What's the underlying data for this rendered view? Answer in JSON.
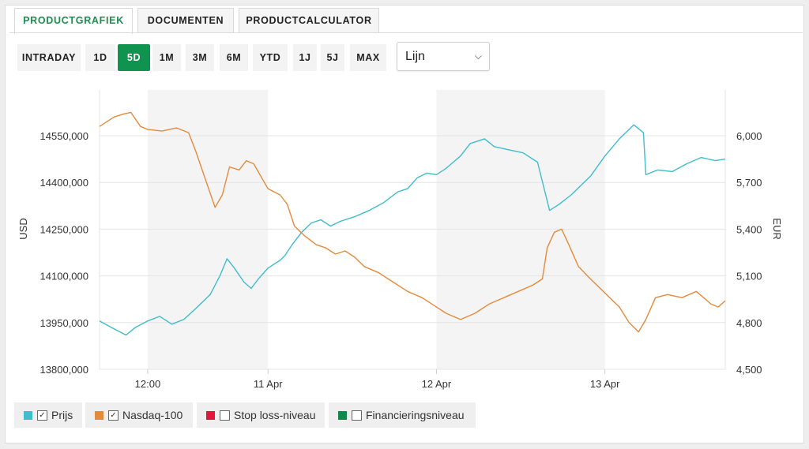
{
  "tabs": [
    "PRODUCTGRAFIEK",
    "DOCUMENTEN",
    "PRODUCTCALCULATOR"
  ],
  "ranges": [
    "INTRADAY",
    "1D",
    "5D",
    "1M",
    "3M",
    "6M",
    "YTD",
    "1J",
    "5J",
    "MAX"
  ],
  "selected_range": "5D",
  "chart_type_select": {
    "value": "Lijn"
  },
  "colors": {
    "accent": "#10934f",
    "prijs": "#40bccb",
    "nasdaq": "#e48a3b",
    "stoploss": "#e0173b",
    "financiering": "#0f8a4c",
    "shade": "#f4f4f4"
  },
  "legend": [
    {
      "label": "Prijs",
      "checked": true
    },
    {
      "label": "Nasdaq-100",
      "checked": true
    },
    {
      "label": "Stop loss-niveau",
      "checked": false
    },
    {
      "label": "Financieringsniveau",
      "checked": false
    }
  ],
  "chart_data": {
    "type": "line",
    "x_ticks": [
      "12:00",
      "11 Apr",
      "12 Apr",
      "13 Apr"
    ],
    "left_axis": {
      "label": "USD",
      "ticks": [
        "13800,000",
        "13950,000",
        "14100,000",
        "14250,000",
        "14400,000",
        "14550,000"
      ],
      "range": [
        13800,
        14550
      ]
    },
    "right_axis": {
      "label": "EUR",
      "ticks": [
        "4,500",
        "4,800",
        "5,100",
        "5,400",
        "5,700",
        "6,000"
      ],
      "range": [
        4500,
        6000
      ]
    },
    "shaded_periods": [
      [
        1.0,
        3.5
      ],
      [
        7.0,
        10.5
      ]
    ],
    "series": [
      {
        "name": "Prijs",
        "axis": "right",
        "points": [
          [
            0.0,
            4810
          ],
          [
            0.3,
            4760
          ],
          [
            0.55,
            4720
          ],
          [
            0.75,
            4770
          ],
          [
            1.0,
            4810
          ],
          [
            1.25,
            4840
          ],
          [
            1.5,
            4790
          ],
          [
            1.75,
            4820
          ],
          [
            2.0,
            4890
          ],
          [
            2.3,
            4980
          ],
          [
            2.5,
            5100
          ],
          [
            2.65,
            5210
          ],
          [
            2.8,
            5150
          ],
          [
            3.0,
            5060
          ],
          [
            3.15,
            5020
          ],
          [
            3.3,
            5080
          ],
          [
            3.5,
            5150
          ],
          [
            3.75,
            5200
          ],
          [
            3.85,
            5230
          ],
          [
            4.0,
            5300
          ],
          [
            4.2,
            5380
          ],
          [
            4.4,
            5440
          ],
          [
            4.6,
            5460
          ],
          [
            4.8,
            5420
          ],
          [
            5.0,
            5450
          ],
          [
            5.3,
            5480
          ],
          [
            5.6,
            5520
          ],
          [
            5.9,
            5570
          ],
          [
            6.2,
            5640
          ],
          [
            6.4,
            5660
          ],
          [
            6.6,
            5730
          ],
          [
            6.8,
            5760
          ],
          [
            7.0,
            5750
          ],
          [
            7.2,
            5790
          ],
          [
            7.5,
            5870
          ],
          [
            7.7,
            5950
          ],
          [
            8.0,
            5980
          ],
          [
            8.2,
            5930
          ],
          [
            8.5,
            5910
          ],
          [
            8.8,
            5890
          ],
          [
            9.1,
            5830
          ],
          [
            9.35,
            5520
          ],
          [
            9.55,
            5560
          ],
          [
            9.8,
            5620
          ],
          [
            10.2,
            5740
          ],
          [
            10.5,
            5870
          ],
          [
            10.8,
            5980
          ],
          [
            11.1,
            6070
          ],
          [
            11.3,
            6020
          ],
          [
            11.35,
            5750
          ],
          [
            11.6,
            5780
          ],
          [
            11.9,
            5770
          ],
          [
            12.2,
            5820
          ],
          [
            12.5,
            5860
          ],
          [
            12.8,
            5840
          ],
          [
            13.0,
            5850
          ]
        ]
      },
      {
        "name": "Nasdaq-100",
        "axis": "left",
        "points": [
          [
            0.0,
            14580
          ],
          [
            0.3,
            14610
          ],
          [
            0.5,
            14620
          ],
          [
            0.65,
            14625
          ],
          [
            0.85,
            14580
          ],
          [
            1.0,
            14570
          ],
          [
            1.3,
            14565
          ],
          [
            1.6,
            14575
          ],
          [
            1.85,
            14560
          ],
          [
            2.0,
            14500
          ],
          [
            2.2,
            14410
          ],
          [
            2.4,
            14320
          ],
          [
            2.55,
            14360
          ],
          [
            2.7,
            14450
          ],
          [
            2.9,
            14440
          ],
          [
            3.05,
            14470
          ],
          [
            3.2,
            14460
          ],
          [
            3.35,
            14420
          ],
          [
            3.5,
            14380
          ],
          [
            3.75,
            14360
          ],
          [
            3.9,
            14330
          ],
          [
            4.05,
            14260
          ],
          [
            4.25,
            14230
          ],
          [
            4.5,
            14200
          ],
          [
            4.7,
            14190
          ],
          [
            4.9,
            14170
          ],
          [
            5.1,
            14180
          ],
          [
            5.3,
            14160
          ],
          [
            5.5,
            14130
          ],
          [
            5.8,
            14110
          ],
          [
            6.1,
            14080
          ],
          [
            6.4,
            14050
          ],
          [
            6.7,
            14030
          ],
          [
            7.0,
            14000
          ],
          [
            7.2,
            13980
          ],
          [
            7.5,
            13960
          ],
          [
            7.8,
            13980
          ],
          [
            8.1,
            14010
          ],
          [
            8.4,
            14030
          ],
          [
            8.7,
            14050
          ],
          [
            9.0,
            14070
          ],
          [
            9.2,
            14090
          ],
          [
            9.3,
            14190
          ],
          [
            9.45,
            14240
          ],
          [
            9.6,
            14250
          ],
          [
            9.75,
            14200
          ],
          [
            9.95,
            14130
          ],
          [
            10.2,
            14090
          ],
          [
            10.4,
            14060
          ],
          [
            10.6,
            14030
          ],
          [
            10.8,
            14000
          ],
          [
            11.0,
            13950
          ],
          [
            11.2,
            13920
          ],
          [
            11.35,
            13960
          ],
          [
            11.55,
            14030
          ],
          [
            11.8,
            14040
          ],
          [
            12.1,
            14030
          ],
          [
            12.4,
            14050
          ],
          [
            12.7,
            14010
          ],
          [
            12.85,
            14000
          ],
          [
            13.0,
            14020
          ]
        ]
      }
    ]
  }
}
